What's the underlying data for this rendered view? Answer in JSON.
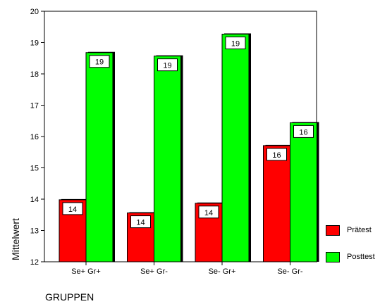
{
  "chart_data": {
    "type": "bar",
    "title": "",
    "xlabel": "GRUPPEN",
    "ylabel": "Mittelwert",
    "categories": [
      "Se+ Gr+",
      "Se+ Gr-",
      "Se- Gr+",
      "Se- Gr-"
    ],
    "series": [
      {
        "name": "Prätest",
        "values": [
          13.98,
          13.56,
          13.87,
          15.71
        ],
        "labels": [
          "14",
          "14",
          "14",
          "16"
        ],
        "color": "#ff0000"
      },
      {
        "name": "Posttest",
        "values": [
          18.68,
          18.57,
          19.27,
          16.44
        ],
        "labels": [
          "19",
          "19",
          "19",
          "16"
        ],
        "color": "#00ff00"
      }
    ],
    "ylim": [
      12,
      20
    ],
    "yticks": [
      "12",
      "13",
      "14",
      "15",
      "16",
      "17",
      "18",
      "19",
      "20"
    ],
    "grid": false,
    "legend_position": "bottom-right"
  }
}
